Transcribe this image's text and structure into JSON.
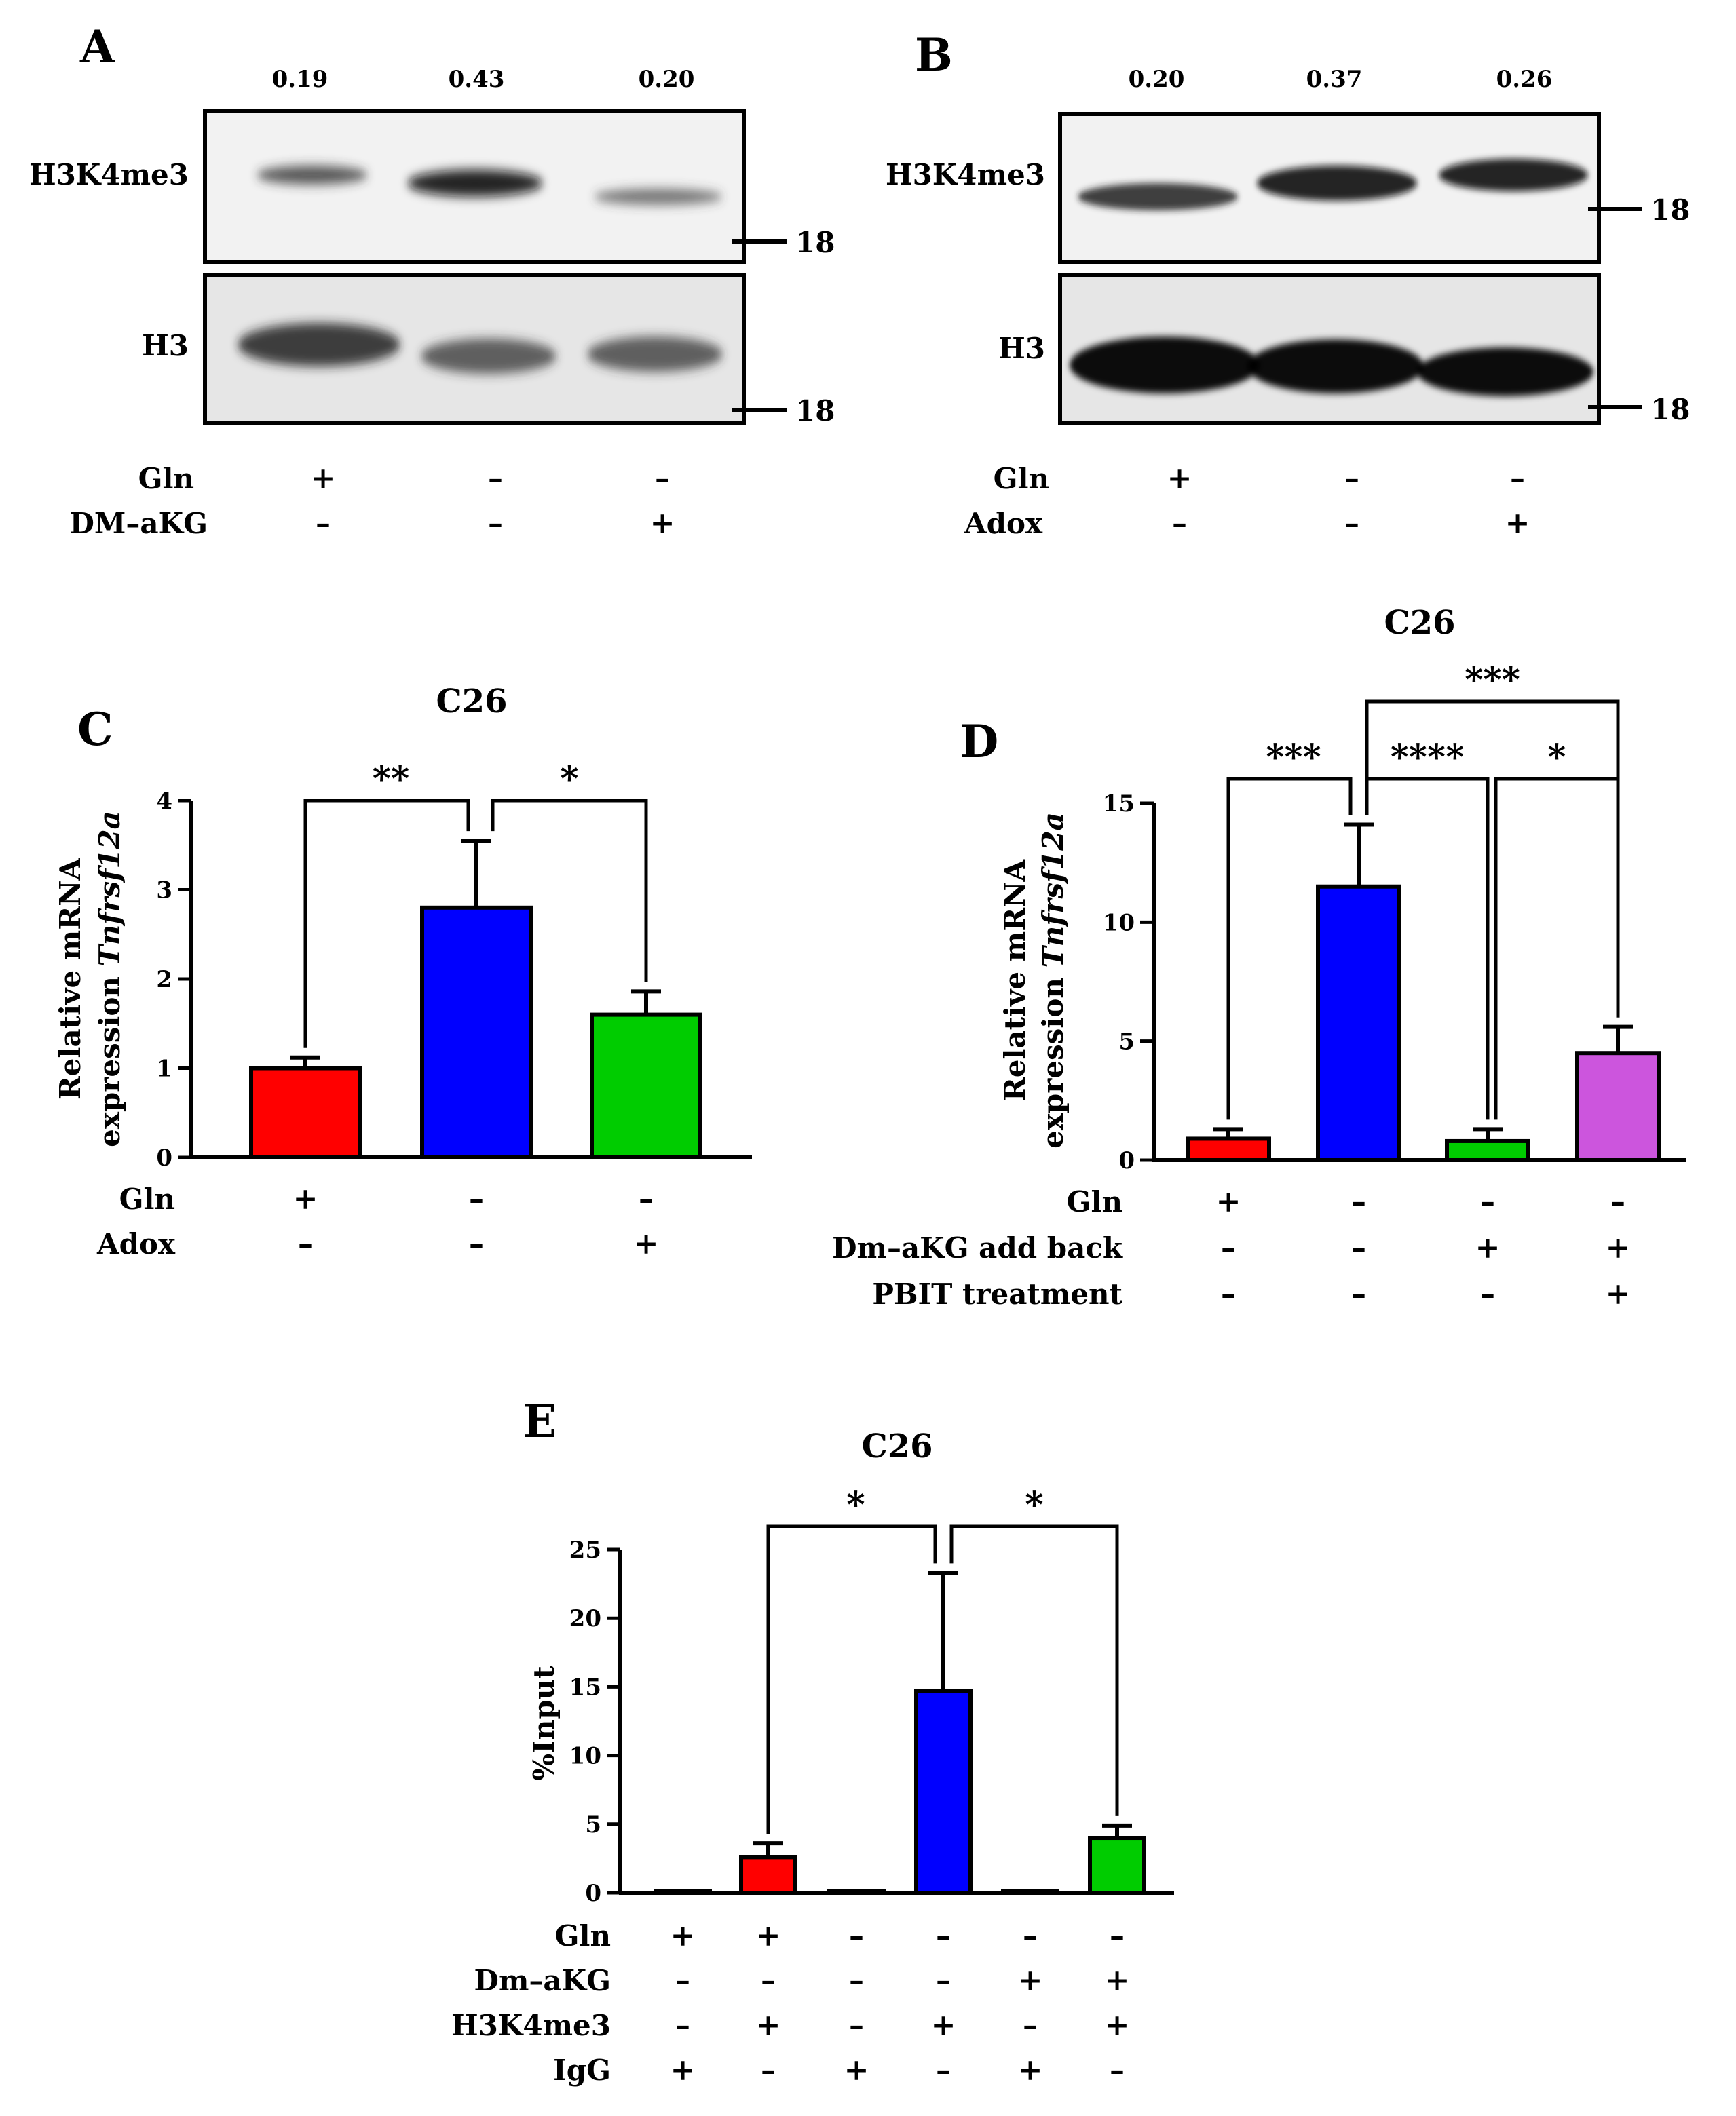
{
  "panels": {
    "A": {
      "letter": "A",
      "band_values": [
        "0.19",
        "0.43",
        "0.20"
      ],
      "row_labels": [
        "H3K4me3",
        "H3"
      ],
      "marker": "18",
      "conditions": [
        {
          "label": "Gln",
          "signs": [
            "+",
            "–",
            "–"
          ]
        },
        {
          "label": "DM–aKG",
          "signs": [
            "–",
            "–",
            "+"
          ]
        }
      ]
    },
    "B": {
      "letter": "B",
      "band_values": [
        "0.20",
        "0.37",
        "0.26"
      ],
      "row_labels": [
        "H3K4me3",
        "H3"
      ],
      "marker": "18",
      "conditions": [
        {
          "label": "Gln",
          "signs": [
            "+",
            "–",
            "–"
          ]
        },
        {
          "label": "Adox",
          "signs": [
            "–",
            "–",
            "+"
          ]
        }
      ]
    },
    "C": {
      "letter": "C"
    },
    "D": {
      "letter": "D"
    },
    "E": {
      "letter": "E"
    }
  },
  "chart_data": [
    {
      "id": "C",
      "type": "bar",
      "title": "C26",
      "ylabel_prefix": "Relative mRNA",
      "ylabel_line2": "expression ",
      "ylabel_gene": "Tnfrsf12a",
      "ylim": [
        0,
        4
      ],
      "yticks": [
        0,
        1,
        2,
        3,
        4
      ],
      "values": [
        1.0,
        2.8,
        1.6
      ],
      "errors": [
        0.12,
        0.75,
        0.26
      ],
      "colors": [
        "#ff0000",
        "#0000ff",
        "#00cc00"
      ],
      "conditions": [
        {
          "label": "Gln",
          "signs": [
            "+",
            "–",
            "–"
          ]
        },
        {
          "label": "Adox",
          "signs": [
            "–",
            "–",
            "+"
          ]
        }
      ],
      "significance": [
        {
          "from": 0,
          "to": 1,
          "label": "**"
        },
        {
          "from": 1,
          "to": 2,
          "label": "*"
        }
      ]
    },
    {
      "id": "D",
      "type": "bar",
      "title": "C26",
      "ylabel_prefix": "Relative mRNA",
      "ylabel_line2": "expression ",
      "ylabel_gene": "Tnfrsf12a",
      "ylim": [
        0,
        15
      ],
      "yticks": [
        0,
        5,
        10,
        15
      ],
      "values": [
        0.9,
        11.5,
        0.8,
        4.5
      ],
      "errors": [
        0.4,
        2.6,
        0.5,
        1.1
      ],
      "colors": [
        "#ff0000",
        "#0000ff",
        "#00cc00",
        "#cc55dd"
      ],
      "conditions": [
        {
          "label": "Gln",
          "signs": [
            "+",
            "–",
            "–",
            "–"
          ]
        },
        {
          "label": "Dm–aKG add back",
          "signs": [
            "–",
            "–",
            "+",
            "+"
          ]
        },
        {
          "label": "PBIT treatment",
          "signs": [
            "–",
            "–",
            "–",
            "+"
          ]
        }
      ],
      "significance": [
        {
          "from": 0,
          "to": 1,
          "label": "***"
        },
        {
          "from": 1,
          "to": 2,
          "label": "****"
        },
        {
          "from": 2,
          "to": 3,
          "label": "*"
        },
        {
          "from": 1,
          "to": 3,
          "label": "***"
        }
      ]
    },
    {
      "id": "E",
      "type": "bar",
      "title": "C26",
      "ylabel": "%Input",
      "ylim": [
        0,
        25
      ],
      "yticks": [
        0,
        5,
        10,
        15,
        20,
        25
      ],
      "values": [
        0.1,
        2.6,
        0.05,
        14.7,
        0.08,
        4.0
      ],
      "errors": [
        0,
        1.0,
        0,
        8.6,
        0,
        0.9
      ],
      "colors": [
        "#ff0000",
        "#ff0000",
        "#0000ff",
        "#0000ff",
        "#00cc00",
        "#00cc00"
      ],
      "conditions": [
        {
          "label": "Gln",
          "signs": [
            "+",
            "+",
            "–",
            "–",
            "–",
            "–"
          ]
        },
        {
          "label": "Dm–aKG",
          "signs": [
            "–",
            "–",
            "–",
            "–",
            "+",
            "+"
          ]
        },
        {
          "label": "H3K4me3",
          "signs": [
            "–",
            "+",
            "–",
            "+",
            "–",
            "+"
          ]
        },
        {
          "label": "IgG",
          "signs": [
            "+",
            "–",
            "+",
            "–",
            "+",
            "–"
          ]
        }
      ],
      "significance": [
        {
          "from": 1,
          "to": 3,
          "label": "*"
        },
        {
          "from": 3,
          "to": 5,
          "label": "*"
        }
      ]
    }
  ]
}
